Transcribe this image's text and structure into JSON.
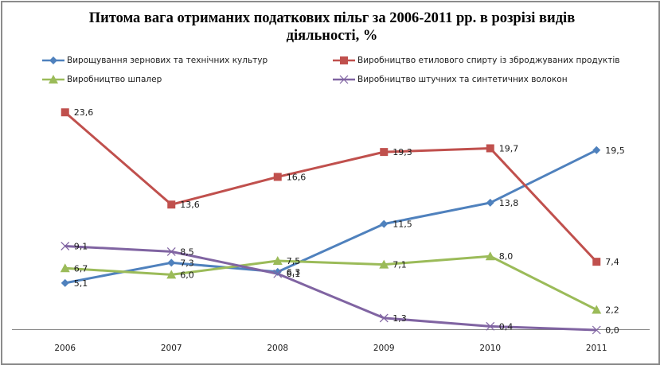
{
  "chart_data": {
    "type": "line",
    "title_lines": [
      "Питома вага отриманих податкових пільг за 2006-2011 рр. в розрізі видів",
      "діяльності, %"
    ],
    "xlabel": "",
    "ylabel": "",
    "categories": [
      "2006",
      "2007",
      "2008",
      "2009",
      "2010",
      "2011"
    ],
    "ylim": [
      0,
      30
    ],
    "grid": false,
    "legend_position": "top",
    "series": [
      {
        "name": "Вирощування зернових та технічних культур",
        "color": "#4F81BD",
        "marker": "diamond",
        "values": [
          5.1,
          7.3,
          6.3,
          11.5,
          13.8,
          19.5
        ],
        "labels": [
          "5,1",
          "7,3",
          "6,3",
          "11,5",
          "13,8",
          "19,5"
        ]
      },
      {
        "name": "Виробництво етилового спирту із зброджуваних  продуктів",
        "color": "#C0504D",
        "marker": "square",
        "values": [
          23.6,
          13.6,
          16.6,
          19.3,
          19.7,
          7.4
        ],
        "labels": [
          "23,6",
          "13,6",
          "16,6",
          "19,3",
          "19,7",
          "7,4"
        ]
      },
      {
        "name": "Виробництво шпалер",
        "color": "#9BBB59",
        "marker": "triangle",
        "values": [
          6.7,
          6.0,
          7.5,
          7.1,
          8.0,
          2.2
        ],
        "labels": [
          "6,7",
          "6,0",
          "7,5",
          "7,1",
          "8,0",
          "2,2"
        ]
      },
      {
        "name": "Виробництво штучних та синтетичних волокон",
        "color": "#8064A2",
        "marker": "x",
        "values": [
          9.1,
          8.5,
          6.1,
          1.3,
          0.4,
          0.0
        ],
        "labels": [
          "9,1",
          "8,5",
          "6,1",
          "1,3",
          "0,4",
          "0,0"
        ]
      }
    ]
  }
}
